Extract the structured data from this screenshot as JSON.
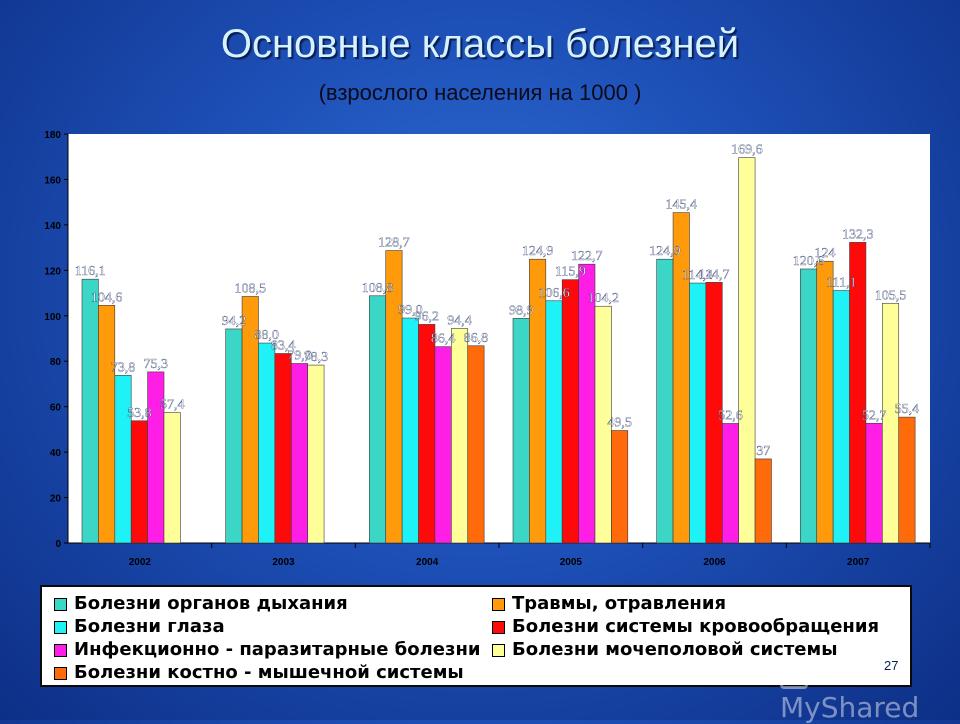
{
  "title": "Основные классы болезней",
  "subtitle": "(взрослого населения на 1000 )",
  "page_number": "27",
  "watermark": "MyShared",
  "chart_data": {
    "type": "bar",
    "title": "Основные классы болезней",
    "subtitle": "(взрослого населения на 1000 )",
    "categories": [
      "2002",
      "2003",
      "2004",
      "2005",
      "2006",
      "2007"
    ],
    "ylim": [
      0,
      180
    ],
    "yticks": [
      "0",
      "20",
      "40",
      "60",
      "80",
      "100",
      "120",
      "140",
      "160",
      "180"
    ],
    "grid": false,
    "legend_position": "bottom",
    "series": [
      {
        "name": "Болезни органов дыхания",
        "color": "#3cd6c6",
        "values": [
          116.1,
          94.2,
          108.8,
          98.9,
          124.9,
          120.6
        ],
        "labels": [
          "116,1",
          "94,2",
          "108,8",
          "98,9",
          "124,9",
          "120,6"
        ]
      },
      {
        "name": "Травмы, отравления",
        "color": "#ff9a0a",
        "values": [
          104.6,
          108.5,
          128.7,
          124.9,
          145.4,
          124
        ],
        "labels": [
          "104,6",
          "108,5",
          "128,7",
          "124,9",
          "145,4",
          "124"
        ]
      },
      {
        "name": "Болезни глаза",
        "color": "#1ef2f6",
        "values": [
          73.8,
          88.0,
          99.0,
          106.6,
          114.4,
          111.1
        ],
        "labels": [
          "73,8",
          "88,0",
          "99,0",
          "106,6",
          "114,4",
          "111,1"
        ]
      },
      {
        "name": "Болезни системы кровообращения",
        "color": "#ff0a0a",
        "values": [
          53.8,
          83.4,
          96.2,
          115.9,
          114.7,
          132.3
        ],
        "labels": [
          "53,8",
          "83,4",
          "96,2",
          "115,9",
          "114,7",
          "132,3"
        ]
      },
      {
        "name": "Инфекционно - паразитарные болезни",
        "color": "#ff1ee6",
        "values": [
          75.3,
          79.0,
          86.4,
          122.7,
          52.6,
          52.7
        ],
        "labels": [
          "75,3",
          "79,0",
          "86,4",
          "122,7",
          "52,6",
          "52,7"
        ]
      },
      {
        "name": "Болезни мочеполовой системы",
        "color": "#ffff9a",
        "values": [
          57.4,
          78.3,
          94.4,
          104.2,
          169.6,
          105.5
        ],
        "labels": [
          "57,4",
          "78,3",
          "94,4",
          "104,2",
          "169,6",
          "105,5"
        ]
      },
      {
        "name": "Болезни костно - мышечной системы",
        "color": "#ff6a0a",
        "values": [
          null,
          null,
          86.8,
          49.5,
          37,
          55.4
        ],
        "labels": [
          "",
          "",
          "86,8",
          "49,5",
          "37",
          "55,4"
        ]
      }
    ]
  }
}
